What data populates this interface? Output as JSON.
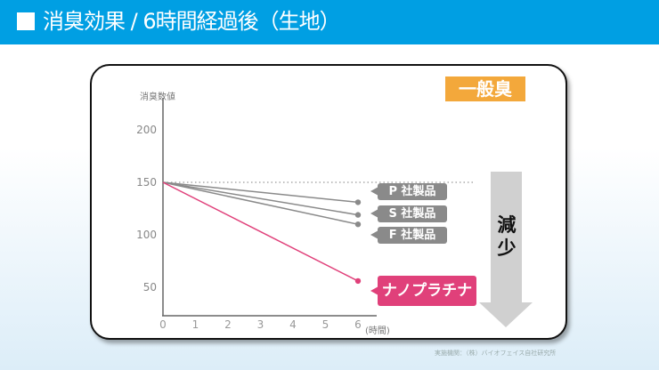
{
  "header": {
    "title": "消臭効果 / 6時間経過後（生地）"
  },
  "badge": "一般臭",
  "arrow_label": "減少",
  "credit": "実施機関：（株）バイオフェイス自社研究所",
  "colors": {
    "header": "#009fe3",
    "badge": "#f3a83b",
    "nano": "#e0407a",
    "competitor": "#8a8a8a"
  },
  "chart_data": {
    "type": "line",
    "ylabel": "消臭数値",
    "xlabel": "(時間)",
    "xlim": [
      0,
      6
    ],
    "ylim": [
      23,
      200
    ],
    "yticks": [
      50,
      100,
      150,
      200
    ],
    "xticks": [
      0,
      1,
      2,
      3,
      4,
      5,
      6
    ],
    "reference_line": 150,
    "series": [
      {
        "name": "P 社製品",
        "x": [
          0,
          6
        ],
        "y": [
          150,
          131
        ],
        "color": "#8a8a8a"
      },
      {
        "name": "S 社製品",
        "x": [
          0,
          6
        ],
        "y": [
          150,
          119
        ],
        "color": "#8a8a8a"
      },
      {
        "name": "F 社製品",
        "x": [
          0,
          6
        ],
        "y": [
          150,
          110
        ],
        "color": "#8a8a8a"
      },
      {
        "name": "ナノプラチナ",
        "x": [
          0,
          6
        ],
        "y": [
          150,
          56
        ],
        "color": "#e0407a"
      }
    ]
  }
}
